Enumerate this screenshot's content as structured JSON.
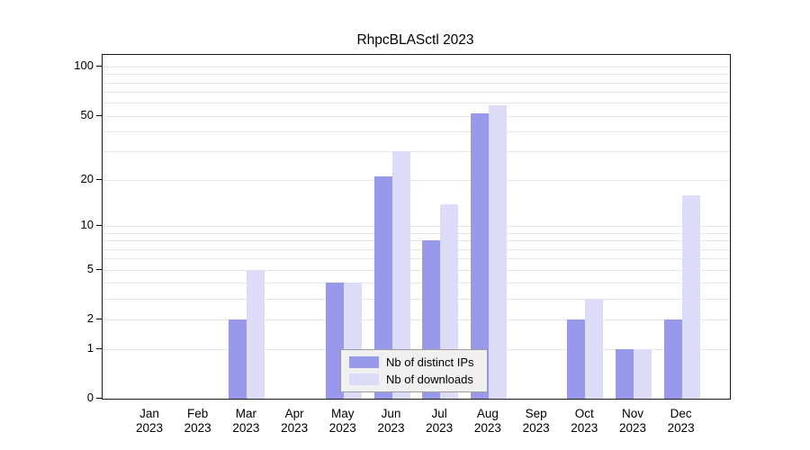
{
  "title": "RhpcBLASctl 2023",
  "chart_data": {
    "type": "bar",
    "title": "RhpcBLASctl 2023",
    "categories": [
      "Jan",
      "Feb",
      "Mar",
      "Apr",
      "May",
      "Jun",
      "Jul",
      "Aug",
      "Sep",
      "Oct",
      "Nov",
      "Dec"
    ],
    "year_label": "2023",
    "series": [
      {
        "name": "Nb of distinct IPs",
        "color": "#9999ec",
        "values": [
          0,
          0,
          2,
          0,
          4,
          21,
          8,
          52,
          0,
          2,
          1,
          2
        ]
      },
      {
        "name": "Nb of downloads",
        "color": "#dcdcf8",
        "values": [
          0,
          0,
          5,
          0,
          4,
          30,
          14,
          58,
          0,
          3,
          1,
          16
        ]
      }
    ],
    "y_scale": "log10(value+1)",
    "y_ticks": [
      0,
      1,
      2,
      5,
      10,
      20,
      50,
      100
    ],
    "minor_gridlines": [
      1,
      2,
      3,
      4,
      5,
      6,
      7,
      8,
      9,
      10,
      20,
      30,
      40,
      50,
      60,
      70,
      80,
      90,
      100
    ],
    "ylim": [
      0,
      118
    ],
    "grid": true,
    "legend_position": "bottom-center"
  }
}
